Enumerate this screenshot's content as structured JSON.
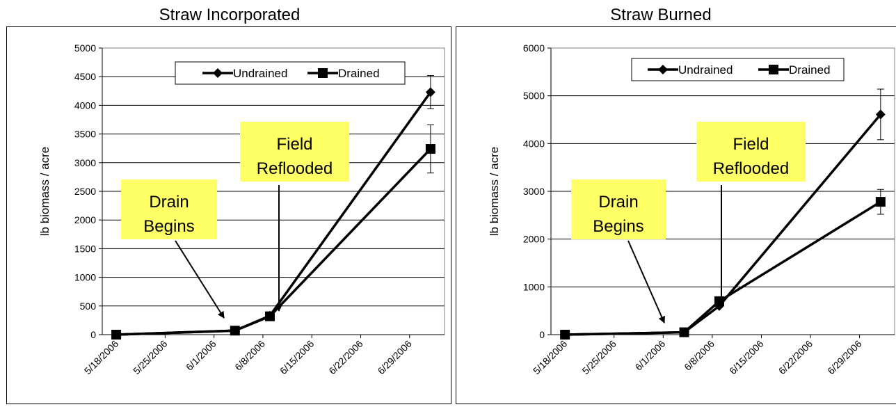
{
  "chart_data": [
    {
      "type": "line",
      "title": "Straw Incorporated",
      "xlabel": "",
      "ylabel": "lb biomass  / acre",
      "ylim": [
        0,
        5000
      ],
      "yticks": [
        0,
        500,
        1000,
        1500,
        2000,
        2500,
        3000,
        3500,
        4000,
        4500,
        5000
      ],
      "xticks": [
        "5/18/2006",
        "5/25/2006",
        "6/1/2006",
        "6/8/2006",
        "6/15/2006",
        "6/22/2006",
        "6/29/2006"
      ],
      "grid": "horizontal",
      "legend_position": "top-right",
      "series": [
        {
          "name": "Undrained",
          "marker": "diamond",
          "points": [
            {
              "x": "5/18/2006",
              "y": 0
            },
            {
              "x": "6/4/2006",
              "y": 70
            },
            {
              "x": "6/9/2006",
              "y": 330
            },
            {
              "x": "7/2/2006",
              "y": 4230
            }
          ],
          "error": [
            0,
            0,
            0,
            290
          ]
        },
        {
          "name": "Drained",
          "marker": "square",
          "points": [
            {
              "x": "5/18/2006",
              "y": 0
            },
            {
              "x": "6/4/2006",
              "y": 70
            },
            {
              "x": "6/9/2006",
              "y": 320
            },
            {
              "x": "7/2/2006",
              "y": 3240
            }
          ],
          "error": [
            0,
            0,
            0,
            420
          ]
        }
      ],
      "annotations": [
        {
          "lines": [
            "Drain",
            "Begins"
          ],
          "points_to": "6/4/2006"
        },
        {
          "lines": [
            "Field",
            "Reflooded"
          ],
          "points_to": "6/9/2006"
        }
      ]
    },
    {
      "type": "line",
      "title": "Straw Burned",
      "xlabel": "",
      "ylabel": "lb biomass  / acre",
      "ylim": [
        0,
        6000
      ],
      "yticks": [
        0,
        1000,
        2000,
        3000,
        4000,
        5000,
        6000
      ],
      "xticks": [
        "5/18/2006",
        "5/25/2006",
        "6/1/2006",
        "6/8/2006",
        "6/15/2006",
        "6/22/2006",
        "6/29/2006"
      ],
      "grid": "horizontal",
      "legend_position": "top-right",
      "series": [
        {
          "name": "Undrained",
          "marker": "diamond",
          "points": [
            {
              "x": "5/18/2006",
              "y": 0
            },
            {
              "x": "6/4/2006",
              "y": 50
            },
            {
              "x": "6/9/2006",
              "y": 600
            },
            {
              "x": "7/2/2006",
              "y": 4610
            }
          ],
          "error": [
            0,
            0,
            0,
            530
          ]
        },
        {
          "name": "Drained",
          "marker": "square",
          "points": [
            {
              "x": "5/18/2006",
              "y": 0
            },
            {
              "x": "6/4/2006",
              "y": 50
            },
            {
              "x": "6/9/2006",
              "y": 700
            },
            {
              "x": "7/2/2006",
              "y": 2780
            }
          ],
          "error": [
            0,
            0,
            0,
            260
          ]
        }
      ],
      "annotations": [
        {
          "lines": [
            "Drain",
            "Begins"
          ],
          "points_to": "6/4/2006"
        },
        {
          "lines": [
            "Field",
            "Reflooded"
          ],
          "points_to": "6/9/2006"
        }
      ]
    }
  ]
}
